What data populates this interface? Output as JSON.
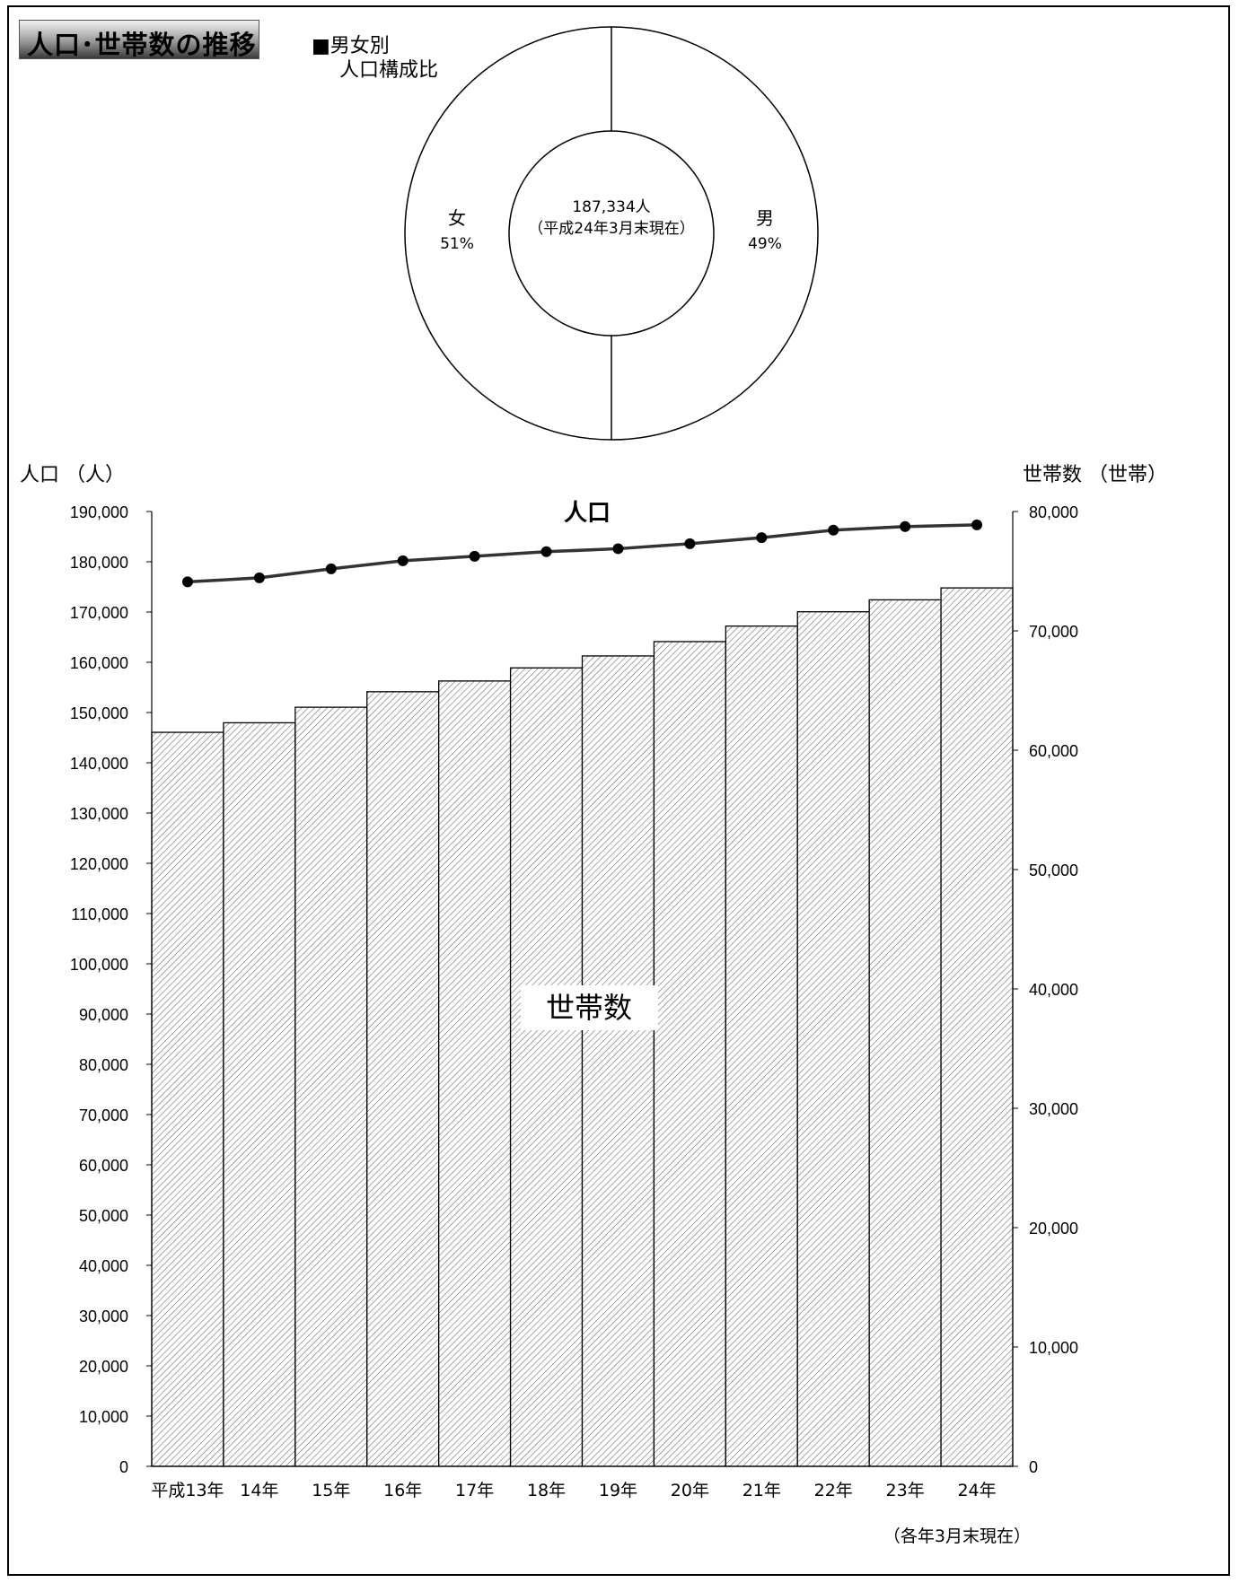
{
  "page": {
    "title": "人口･世帯数の推移",
    "footnote": "（各年3月末現在）"
  },
  "colors": {
    "line": "#333333",
    "bar_stroke": "#000000",
    "hatch": "#777777",
    "background": "#ffffff"
  },
  "chart_data": [
    {
      "type": "pie",
      "title": "■男女別\n人口構成比",
      "donut": true,
      "center_label": [
        "187,334人",
        "（平成24年3月末現在）"
      ],
      "slices": [
        {
          "label": "男",
          "value": 49,
          "percent_label": "49%"
        },
        {
          "label": "女",
          "value": 51,
          "percent_label": "51%"
        }
      ]
    },
    {
      "type": "bar",
      "combo": "bar+line",
      "categories": [
        "平成13年",
        "14年",
        "15年",
        "16年",
        "17年",
        "18年",
        "19年",
        "20年",
        "21年",
        "22年",
        "23年",
        "24年"
      ],
      "ylabel_left": "人口 （人）",
      "ylabel_right": "世帯数 （世帯）",
      "ylim_left": [
        0,
        190000
      ],
      "ylim_right": [
        0,
        80000
      ],
      "yticks_left": [
        "0",
        "10,000",
        "20,000",
        "30,000",
        "40,000",
        "50,000",
        "60,000",
        "70,000",
        "80,000",
        "90,000",
        "100,000",
        "110,000",
        "120,000",
        "130,000",
        "140,000",
        "150,000",
        "160,000",
        "170,000",
        "180,000",
        "190,000"
      ],
      "yticks_right": [
        "0",
        "10,000",
        "20,000",
        "30,000",
        "40,000",
        "50,000",
        "60,000",
        "70,000",
        "80,000"
      ],
      "series": [
        {
          "name": "世帯数",
          "type": "bar",
          "axis": "right",
          "values": [
            61500,
            62300,
            63600,
            64900,
            65800,
            66900,
            67900,
            69100,
            70400,
            71600,
            72600,
            73600
          ]
        },
        {
          "name": "人口",
          "type": "line",
          "axis": "left",
          "values": [
            176000,
            176800,
            178600,
            180200,
            181100,
            182000,
            182600,
            183600,
            184800,
            186300,
            187000,
            187334
          ]
        }
      ],
      "grid": false
    }
  ]
}
